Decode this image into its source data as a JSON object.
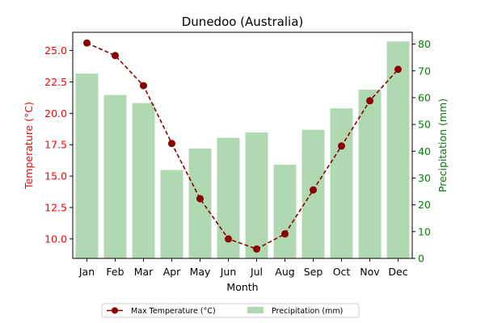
{
  "chart_data": {
    "type": "bar",
    "title": "Dunedoo (Australia)",
    "xlabel": "Month",
    "ylabel_left": "Temperature (°C)",
    "ylabel_right": "Precipitation (mm)",
    "categories": [
      "Jan",
      "Feb",
      "Mar",
      "Apr",
      "May",
      "Jun",
      "Jul",
      "Aug",
      "Sep",
      "Oct",
      "Nov",
      "Dec"
    ],
    "series": [
      {
        "name": "Max Temperature (°C)",
        "type": "line",
        "axis": "left",
        "color": "#8b0000",
        "values": [
          25.6,
          24.6,
          22.2,
          17.6,
          13.2,
          10.0,
          9.2,
          10.4,
          13.9,
          17.4,
          21.0,
          23.5
        ]
      },
      {
        "name": "Precipitation (mm)",
        "type": "bar",
        "axis": "right",
        "color": "#b0d9b1",
        "values": [
          69,
          61,
          58,
          33,
          41,
          45,
          47,
          35,
          48,
          56,
          63,
          81
        ]
      }
    ],
    "ylim_left": [
      8.45,
      26.45
    ],
    "ylim_right": [
      0,
      84.4
    ],
    "yticks_left": [
      "10.0",
      "12.5",
      "15.0",
      "17.5",
      "20.0",
      "22.5",
      "25.0"
    ],
    "yticks_right": [
      "0",
      "10",
      "20",
      "30",
      "40",
      "50",
      "60",
      "70",
      "80"
    ],
    "left_axis_color": "#ff0000",
    "right_axis_color": "#008000",
    "legend_position": "bottom-center",
    "grid": false
  }
}
